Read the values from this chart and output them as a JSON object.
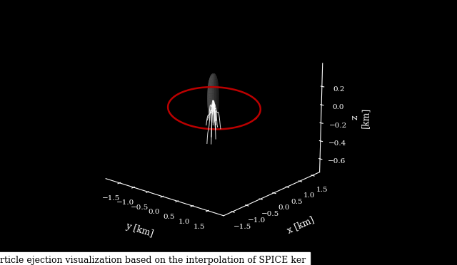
{
  "background_color": "#000000",
  "pane_color_rgba": [
    0.0,
    0.0,
    0.0,
    0.0
  ],
  "axis_color": "white",
  "xlabel": "y [km]",
  "ylabel": "x [km]",
  "zlabel": "z\n[km]",
  "xlim": [
    -2.0,
    2.0
  ],
  "ylim": [
    -1.8,
    1.8
  ],
  "zlim": [
    -0.75,
    0.45
  ],
  "xticks": [
    -1.5,
    -1.0,
    -0.5,
    0.0,
    0.5,
    1.0,
    1.5
  ],
  "yticks": [
    -1.5,
    -1.0,
    -0.5,
    0.0,
    0.5,
    1.0,
    1.5
  ],
  "zticks": [
    -0.6,
    -0.4,
    -0.2,
    0.0,
    0.2
  ],
  "orbit_color": "#bb0000",
  "orbit_a": 1.4,
  "orbit_b": 0.75,
  "orbit_tilt": 0.12,
  "particle_color": "white",
  "bennu_color_dark": "#555555",
  "bennu_color_light": "#999999",
  "legend_facecolor": "#0a0a0a",
  "legend_edgecolor": "#666666",
  "legend_textcolor": "white",
  "elev": 18,
  "azim": -50,
  "caption": "rticle ejection visualization based on the interpolation of SPICE ker"
}
